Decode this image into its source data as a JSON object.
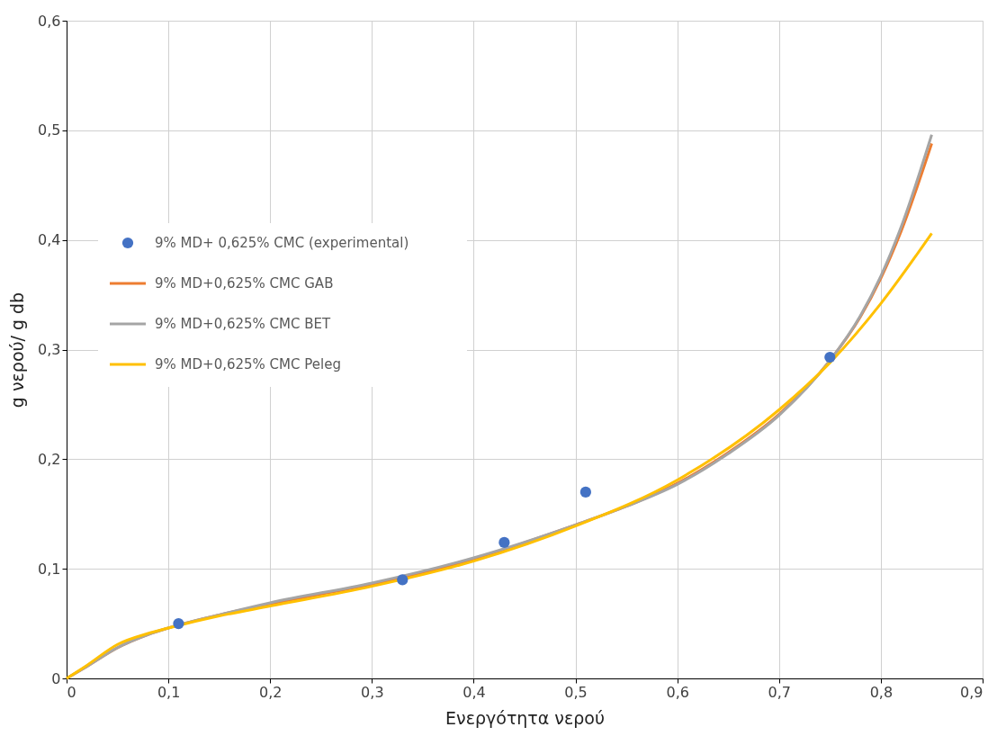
{
  "chart_data": {
    "type": "scatter",
    "xlabel": "Ενεργότητα νερού",
    "ylabel": "g νερού/ g db",
    "xlim": [
      0,
      0.9
    ],
    "ylim": [
      0,
      0.6
    ],
    "xticks": [
      {
        "value": 0,
        "label": "0"
      },
      {
        "value": 0.1,
        "label": "0,1"
      },
      {
        "value": 0.2,
        "label": "0,2"
      },
      {
        "value": 0.3,
        "label": "0,3"
      },
      {
        "value": 0.4,
        "label": "0,4"
      },
      {
        "value": 0.5,
        "label": "0,5"
      },
      {
        "value": 0.6,
        "label": "0,6"
      },
      {
        "value": 0.7,
        "label": "0,7"
      },
      {
        "value": 0.8,
        "label": "0,8"
      },
      {
        "value": 0.9,
        "label": "0,9"
      }
    ],
    "yticks": [
      {
        "value": 0,
        "label": "0"
      },
      {
        "value": 0.1,
        "label": "0,1"
      },
      {
        "value": 0.2,
        "label": "0,2"
      },
      {
        "value": 0.3,
        "label": "0,3"
      },
      {
        "value": 0.4,
        "label": "0,4"
      },
      {
        "value": 0.5,
        "label": "0,5"
      },
      {
        "value": 0.6,
        "label": "0,6"
      }
    ],
    "grid": true,
    "legend": "top left",
    "series": [
      {
        "name": "9% MD+ 0,625% CMC (experimental)",
        "type": "scatter",
        "marker": "circle",
        "color": "#4472c4",
        "x": [
          0.11,
          0.33,
          0.43,
          0.51,
          0.75
        ],
        "values": [
          0.05,
          0.09,
          0.124,
          0.17,
          0.293
        ]
      },
      {
        "name": "9% MD+0,625% CMC GAB",
        "type": "line",
        "color": "#ed7d31",
        "x": [
          0,
          0.02,
          0.05,
          0.08,
          0.1,
          0.15,
          0.2,
          0.3,
          0.4,
          0.5,
          0.55,
          0.6,
          0.65,
          0.7,
          0.75,
          0.78,
          0.8,
          0.82,
          0.85
        ],
        "values": [
          0,
          0.011,
          0.028,
          0.04,
          0.046,
          0.058,
          0.068,
          0.086,
          0.109,
          0.14,
          0.157,
          0.178,
          0.206,
          0.241,
          0.29,
          0.33,
          0.365,
          0.408,
          0.488
        ]
      },
      {
        "name": "9% MD+0,625% CMC BET",
        "type": "line",
        "color": "#a5a5a5",
        "x": [
          0,
          0.02,
          0.05,
          0.08,
          0.1,
          0.15,
          0.2,
          0.3,
          0.4,
          0.5,
          0.55,
          0.6,
          0.65,
          0.7,
          0.75,
          0.78,
          0.8,
          0.82,
          0.85
        ],
        "values": [
          0,
          0.011,
          0.028,
          0.04,
          0.046,
          0.058,
          0.069,
          0.087,
          0.11,
          0.14,
          0.157,
          0.177,
          0.205,
          0.24,
          0.29,
          0.331,
          0.367,
          0.412,
          0.496
        ]
      },
      {
        "name": "9% MD+0,625% CMC Peleg",
        "type": "line",
        "color": "#ffc000",
        "x": [
          0,
          0.02,
          0.05,
          0.08,
          0.1,
          0.15,
          0.2,
          0.3,
          0.4,
          0.5,
          0.6,
          0.7,
          0.75,
          0.8,
          0.85
        ],
        "values": [
          0,
          0.012,
          0.031,
          0.041,
          0.046,
          0.057,
          0.066,
          0.084,
          0.107,
          0.139,
          0.181,
          0.245,
          0.288,
          0.342,
          0.406
        ]
      }
    ]
  }
}
